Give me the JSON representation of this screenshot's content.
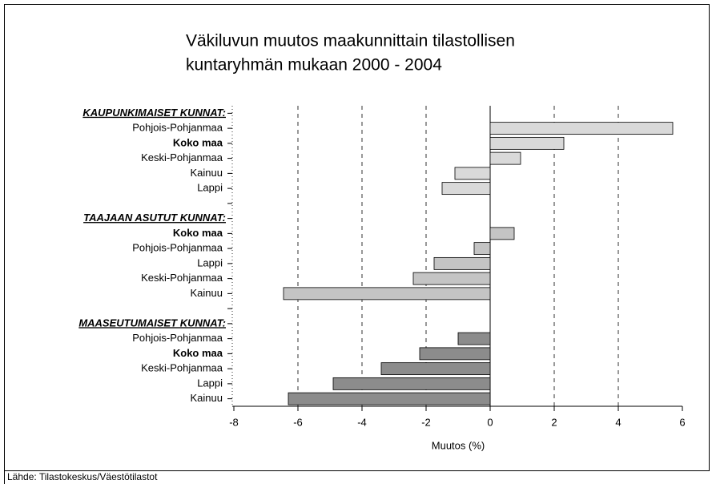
{
  "chart_data": {
    "type": "barh",
    "title": [
      "Väkiluvun muutos maakunnittain tilastollisen",
      "kuntaryhmän mukaan 2000 - 2004"
    ],
    "categories": [
      "KAUPUNKIMAISET KUNNAT:",
      "Pohjois-Pohjanmaa",
      "Koko maa",
      "Keski-Pohjanmaa",
      "Kainuu",
      "Lappi",
      null,
      "TAAJAAN ASUTUT KUNNAT:",
      "Koko maa",
      "Pohjois-Pohjanmaa",
      "Lappi",
      "Keski-Pohjanmaa",
      "Kainuu",
      null,
      "MAASEUTUMAISET KUNNAT:",
      "Pohjois-Pohjanmaa",
      "Koko maa",
      "Keski-Pohjanmaa",
      "Lappi",
      "Kainuu"
    ],
    "category_styles": [
      "header",
      "normal",
      "bold",
      "normal",
      "normal",
      "normal",
      "normal",
      "header",
      "bold",
      "normal",
      "normal",
      "normal",
      "normal",
      "normal",
      "header",
      "normal",
      "bold",
      "normal",
      "normal",
      "normal"
    ],
    "values": [
      null,
      5.7,
      2.3,
      0.95,
      -1.1,
      -1.5,
      null,
      null,
      0.75,
      -0.5,
      -1.75,
      -2.4,
      -6.45,
      null,
      null,
      -1.0,
      -2.2,
      -3.4,
      -4.9,
      -6.3
    ],
    "colors": [
      null,
      "#d9d9d9",
      "#d9d9d9",
      "#d9d9d9",
      "#d9d9d9",
      "#d9d9d9",
      null,
      null,
      "#c4c4c4",
      "#c4c4c4",
      "#c4c4c4",
      "#c4c4c4",
      "#c4c4c4",
      null,
      null,
      "#8c8c8c",
      "#8c8c8c",
      "#8c8c8c",
      "#8c8c8c",
      "#8c8c8c"
    ],
    "xlim": [
      -8,
      6
    ],
    "xticks": [
      -8,
      -6,
      -4,
      -2,
      0,
      2,
      4,
      6
    ],
    "grid": true,
    "xlabel": "Muutos (%)",
    "source": "Lähde: Tilastokeskus/Väestötilastot"
  }
}
